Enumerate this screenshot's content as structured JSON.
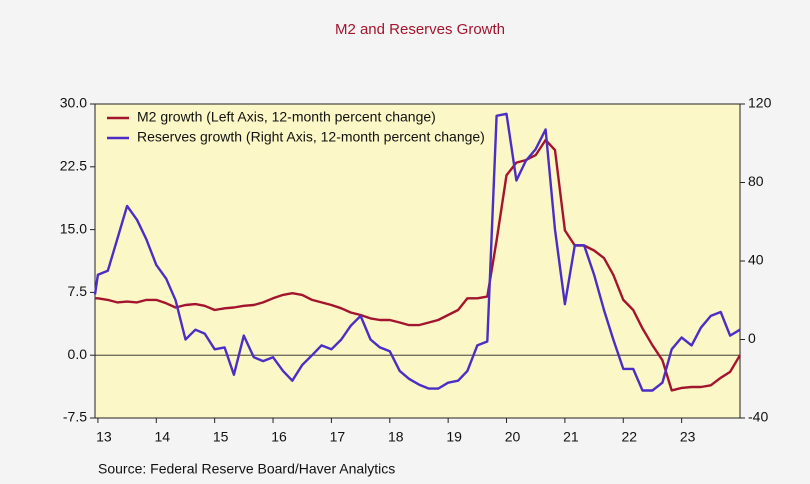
{
  "chart_data": {
    "type": "line",
    "title": "M2 and Reserves Growth",
    "source": "Source:  Federal Reserve Board/Haver Analytics",
    "x": [
      12.95,
      13.0,
      13.17,
      13.33,
      13.5,
      13.67,
      13.83,
      14.0,
      14.17,
      14.33,
      14.5,
      14.67,
      14.83,
      15.0,
      15.17,
      15.33,
      15.5,
      15.67,
      15.83,
      16.0,
      16.17,
      16.33,
      16.5,
      16.67,
      16.83,
      17.0,
      17.17,
      17.33,
      17.5,
      17.67,
      17.83,
      18.0,
      18.17,
      18.33,
      18.5,
      18.67,
      18.83,
      19.0,
      19.17,
      19.33,
      19.5,
      19.67,
      19.83,
      20.0,
      20.17,
      20.33,
      20.5,
      20.67,
      20.83,
      21.0,
      21.17,
      21.33,
      21.5,
      21.67,
      21.83,
      22.0,
      22.17,
      22.33,
      22.5,
      22.67,
      22.83,
      23.0,
      23.17,
      23.33,
      23.5,
      23.67,
      23.83,
      24.0
    ],
    "series": [
      {
        "name": "M2 growth (Left Axis, 12-month percent change)",
        "color": "#a3152e",
        "values": [
          6.8,
          6.8,
          6.6,
          6.3,
          6.4,
          6.3,
          6.6,
          6.6,
          6.2,
          5.7,
          6.0,
          6.1,
          5.9,
          5.4,
          5.6,
          5.7,
          5.9,
          6.0,
          6.3,
          6.8,
          7.2,
          7.4,
          7.2,
          6.6,
          6.3,
          6.0,
          5.6,
          5.1,
          4.8,
          4.4,
          4.2,
          4.2,
          3.9,
          3.6,
          3.6,
          3.9,
          4.2,
          4.8,
          5.4,
          6.8,
          6.8,
          7.0,
          13.7,
          21.5,
          23.0,
          23.3,
          23.9,
          25.7,
          24.5,
          14.9,
          13.1,
          13.1,
          12.5,
          11.6,
          9.6,
          6.6,
          5.4,
          3.2,
          1.2,
          -0.6,
          -4.2,
          -3.9,
          -3.8,
          -3.8,
          -3.6,
          -2.7,
          -2.0,
          0
        ]
      },
      {
        "name": "Reserves growth  (Right Axis, 12-month percent change)",
        "color": "#4a2ec6",
        "axis": "y2",
        "values": [
          23,
          33,
          35,
          51,
          68,
          61,
          51,
          38,
          31,
          20,
          0,
          5,
          3,
          -5,
          -4,
          -18,
          2,
          -9,
          -11,
          -9,
          -16,
          -21,
          -13,
          -8,
          -3,
          -5,
          0,
          7,
          12,
          0,
          -4,
          -6,
          -16,
          -20,
          -23,
          -25,
          -25,
          -22,
          -21,
          -16,
          -3,
          -1,
          114,
          115,
          81,
          91,
          97,
          107,
          56,
          18,
          48,
          48,
          33,
          15,
          0,
          -15,
          -15,
          -26,
          -26,
          -22,
          -5,
          1,
          -3,
          6,
          12,
          14,
          2,
          5
        ]
      }
    ],
    "xlim": [
      12.95,
      24.0
    ],
    "xticks": [
      13,
      14,
      15,
      16,
      17,
      18,
      19,
      20,
      21,
      22,
      23
    ],
    "ylim": [
      -7.5,
      30
    ],
    "yticks": [
      -7.5,
      {
        "value": 0,
        "label": "0.0"
      },
      7.5,
      {
        "value": 15,
        "label": "15.0"
      },
      22.5,
      {
        "value": 30,
        "label": "30.0"
      }
    ],
    "y2lim": [
      -40,
      120
    ],
    "y2ticks": [
      -40,
      0,
      40,
      80,
      120
    ],
    "zero_line": true,
    "grid": false,
    "legend": "upper-left"
  }
}
